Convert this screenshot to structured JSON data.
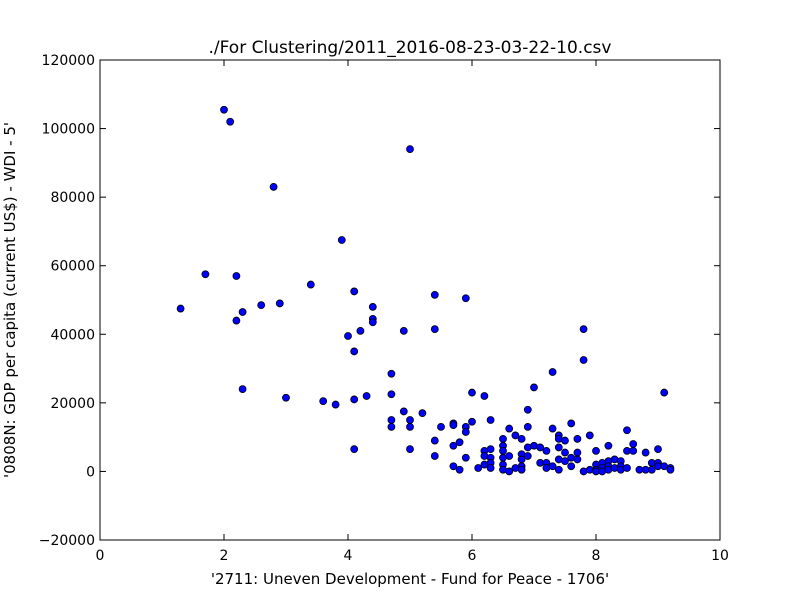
{
  "chart_data": {
    "type": "scatter",
    "title": "./For Clustering/2011_2016-08-23-03-22-10.csv",
    "xlabel": "'2711: Uneven Development - Fund for Peace - 1706'",
    "ylabel": "'0808N: GDP per capita  (current US$) - WDI - 5'",
    "xlim": [
      0,
      10
    ],
    "ylim": [
      -20000,
      120000
    ],
    "xticks": [
      "0",
      "2",
      "4",
      "6",
      "8",
      "10"
    ],
    "yticks": [
      "−20000",
      "0",
      "20000",
      "40000",
      "60000",
      "80000",
      "100000",
      "120000"
    ],
    "grid": false,
    "marker_color": "#0000ff",
    "points": [
      [
        1.3,
        47500
      ],
      [
        1.7,
        57500
      ],
      [
        2.0,
        105500
      ],
      [
        2.1,
        102000
      ],
      [
        2.2,
        57000
      ],
      [
        2.2,
        44000
      ],
      [
        2.3,
        46500
      ],
      [
        2.3,
        24000
      ],
      [
        2.6,
        48500
      ],
      [
        2.8,
        83000
      ],
      [
        2.9,
        49000
      ],
      [
        3.0,
        21500
      ],
      [
        3.4,
        54500
      ],
      [
        3.6,
        20500
      ],
      [
        3.8,
        19500
      ],
      [
        3.9,
        67500
      ],
      [
        4.0,
        39500
      ],
      [
        4.1,
        52500
      ],
      [
        4.1,
        35000
      ],
      [
        4.1,
        21000
      ],
      [
        4.1,
        6500
      ],
      [
        4.2,
        41000
      ],
      [
        4.3,
        22000
      ],
      [
        4.4,
        48000
      ],
      [
        4.4,
        44500
      ],
      [
        4.4,
        43500
      ],
      [
        4.7,
        28500
      ],
      [
        4.7,
        22500
      ],
      [
        4.7,
        15000
      ],
      [
        4.7,
        13000
      ],
      [
        4.9,
        41000
      ],
      [
        4.9,
        17500
      ],
      [
        5.0,
        94000
      ],
      [
        5.0,
        15000
      ],
      [
        5.0,
        13000
      ],
      [
        5.0,
        6500
      ],
      [
        5.2,
        17000
      ],
      [
        5.4,
        51500
      ],
      [
        5.4,
        41500
      ],
      [
        5.4,
        9000
      ],
      [
        5.4,
        4500
      ],
      [
        5.5,
        13000
      ],
      [
        5.7,
        14000
      ],
      [
        5.7,
        13500
      ],
      [
        5.7,
        7500
      ],
      [
        5.7,
        1500
      ],
      [
        5.8,
        8500
      ],
      [
        5.8,
        500
      ],
      [
        5.9,
        50500
      ],
      [
        5.9,
        13000
      ],
      [
        5.9,
        11500
      ],
      [
        5.9,
        4000
      ],
      [
        6.0,
        23000
      ],
      [
        6.0,
        14500
      ],
      [
        6.1,
        1000
      ],
      [
        6.2,
        22000
      ],
      [
        6.2,
        6000
      ],
      [
        6.2,
        4500
      ],
      [
        6.2,
        2000
      ],
      [
        6.3,
        15000
      ],
      [
        6.3,
        6500
      ],
      [
        6.3,
        4000
      ],
      [
        6.3,
        2500
      ],
      [
        6.3,
        1000
      ],
      [
        6.5,
        9500
      ],
      [
        6.5,
        7500
      ],
      [
        6.5,
        6000
      ],
      [
        6.5,
        4000
      ],
      [
        6.5,
        2000
      ],
      [
        6.5,
        500
      ],
      [
        6.6,
        12500
      ],
      [
        6.6,
        4500
      ],
      [
        6.6,
        0
      ],
      [
        6.7,
        10500
      ],
      [
        6.7,
        1000
      ],
      [
        6.8,
        9500
      ],
      [
        6.8,
        5000
      ],
      [
        6.8,
        3500
      ],
      [
        6.8,
        1500
      ],
      [
        6.8,
        500
      ],
      [
        6.9,
        18000
      ],
      [
        6.9,
        13000
      ],
      [
        6.9,
        7000
      ],
      [
        6.9,
        4500
      ],
      [
        7.0,
        24500
      ],
      [
        7.0,
        7500
      ],
      [
        7.1,
        7000
      ],
      [
        7.1,
        2500
      ],
      [
        7.2,
        6000
      ],
      [
        7.2,
        2500
      ],
      [
        7.2,
        1000
      ],
      [
        7.3,
        29000
      ],
      [
        7.3,
        12500
      ],
      [
        7.3,
        1500
      ],
      [
        7.4,
        10500
      ],
      [
        7.4,
        9500
      ],
      [
        7.4,
        7000
      ],
      [
        7.4,
        3500
      ],
      [
        7.4,
        500
      ],
      [
        7.5,
        9000
      ],
      [
        7.5,
        5500
      ],
      [
        7.5,
        3000
      ],
      [
        7.6,
        14000
      ],
      [
        7.6,
        4000
      ],
      [
        7.6,
        1500
      ],
      [
        7.7,
        9500
      ],
      [
        7.7,
        5500
      ],
      [
        7.7,
        3500
      ],
      [
        7.8,
        41500
      ],
      [
        7.8,
        32500
      ],
      [
        7.8,
        0
      ],
      [
        7.9,
        10500
      ],
      [
        7.9,
        500
      ],
      [
        8.0,
        6000
      ],
      [
        8.0,
        2000
      ],
      [
        8.0,
        500
      ],
      [
        8.0,
        0
      ],
      [
        8.1,
        2500
      ],
      [
        8.1,
        1000
      ],
      [
        8.1,
        0
      ],
      [
        8.2,
        7500
      ],
      [
        8.2,
        3000
      ],
      [
        8.2,
        1500
      ],
      [
        8.2,
        500
      ],
      [
        8.3,
        3500
      ],
      [
        8.3,
        1000
      ],
      [
        8.4,
        3000
      ],
      [
        8.4,
        1500
      ],
      [
        8.4,
        500
      ],
      [
        8.5,
        12000
      ],
      [
        8.5,
        6000
      ],
      [
        8.5,
        1000
      ],
      [
        8.6,
        8000
      ],
      [
        8.6,
        6000
      ],
      [
        8.7,
        500
      ],
      [
        8.8,
        5500
      ],
      [
        8.8,
        500
      ],
      [
        8.9,
        2500
      ],
      [
        8.9,
        500
      ],
      [
        9.0,
        6500
      ],
      [
        9.0,
        2500
      ],
      [
        9.0,
        1500
      ],
      [
        9.1,
        23000
      ],
      [
        9.1,
        1500
      ],
      [
        9.2,
        1000
      ],
      [
        9.2,
        500
      ]
    ]
  }
}
